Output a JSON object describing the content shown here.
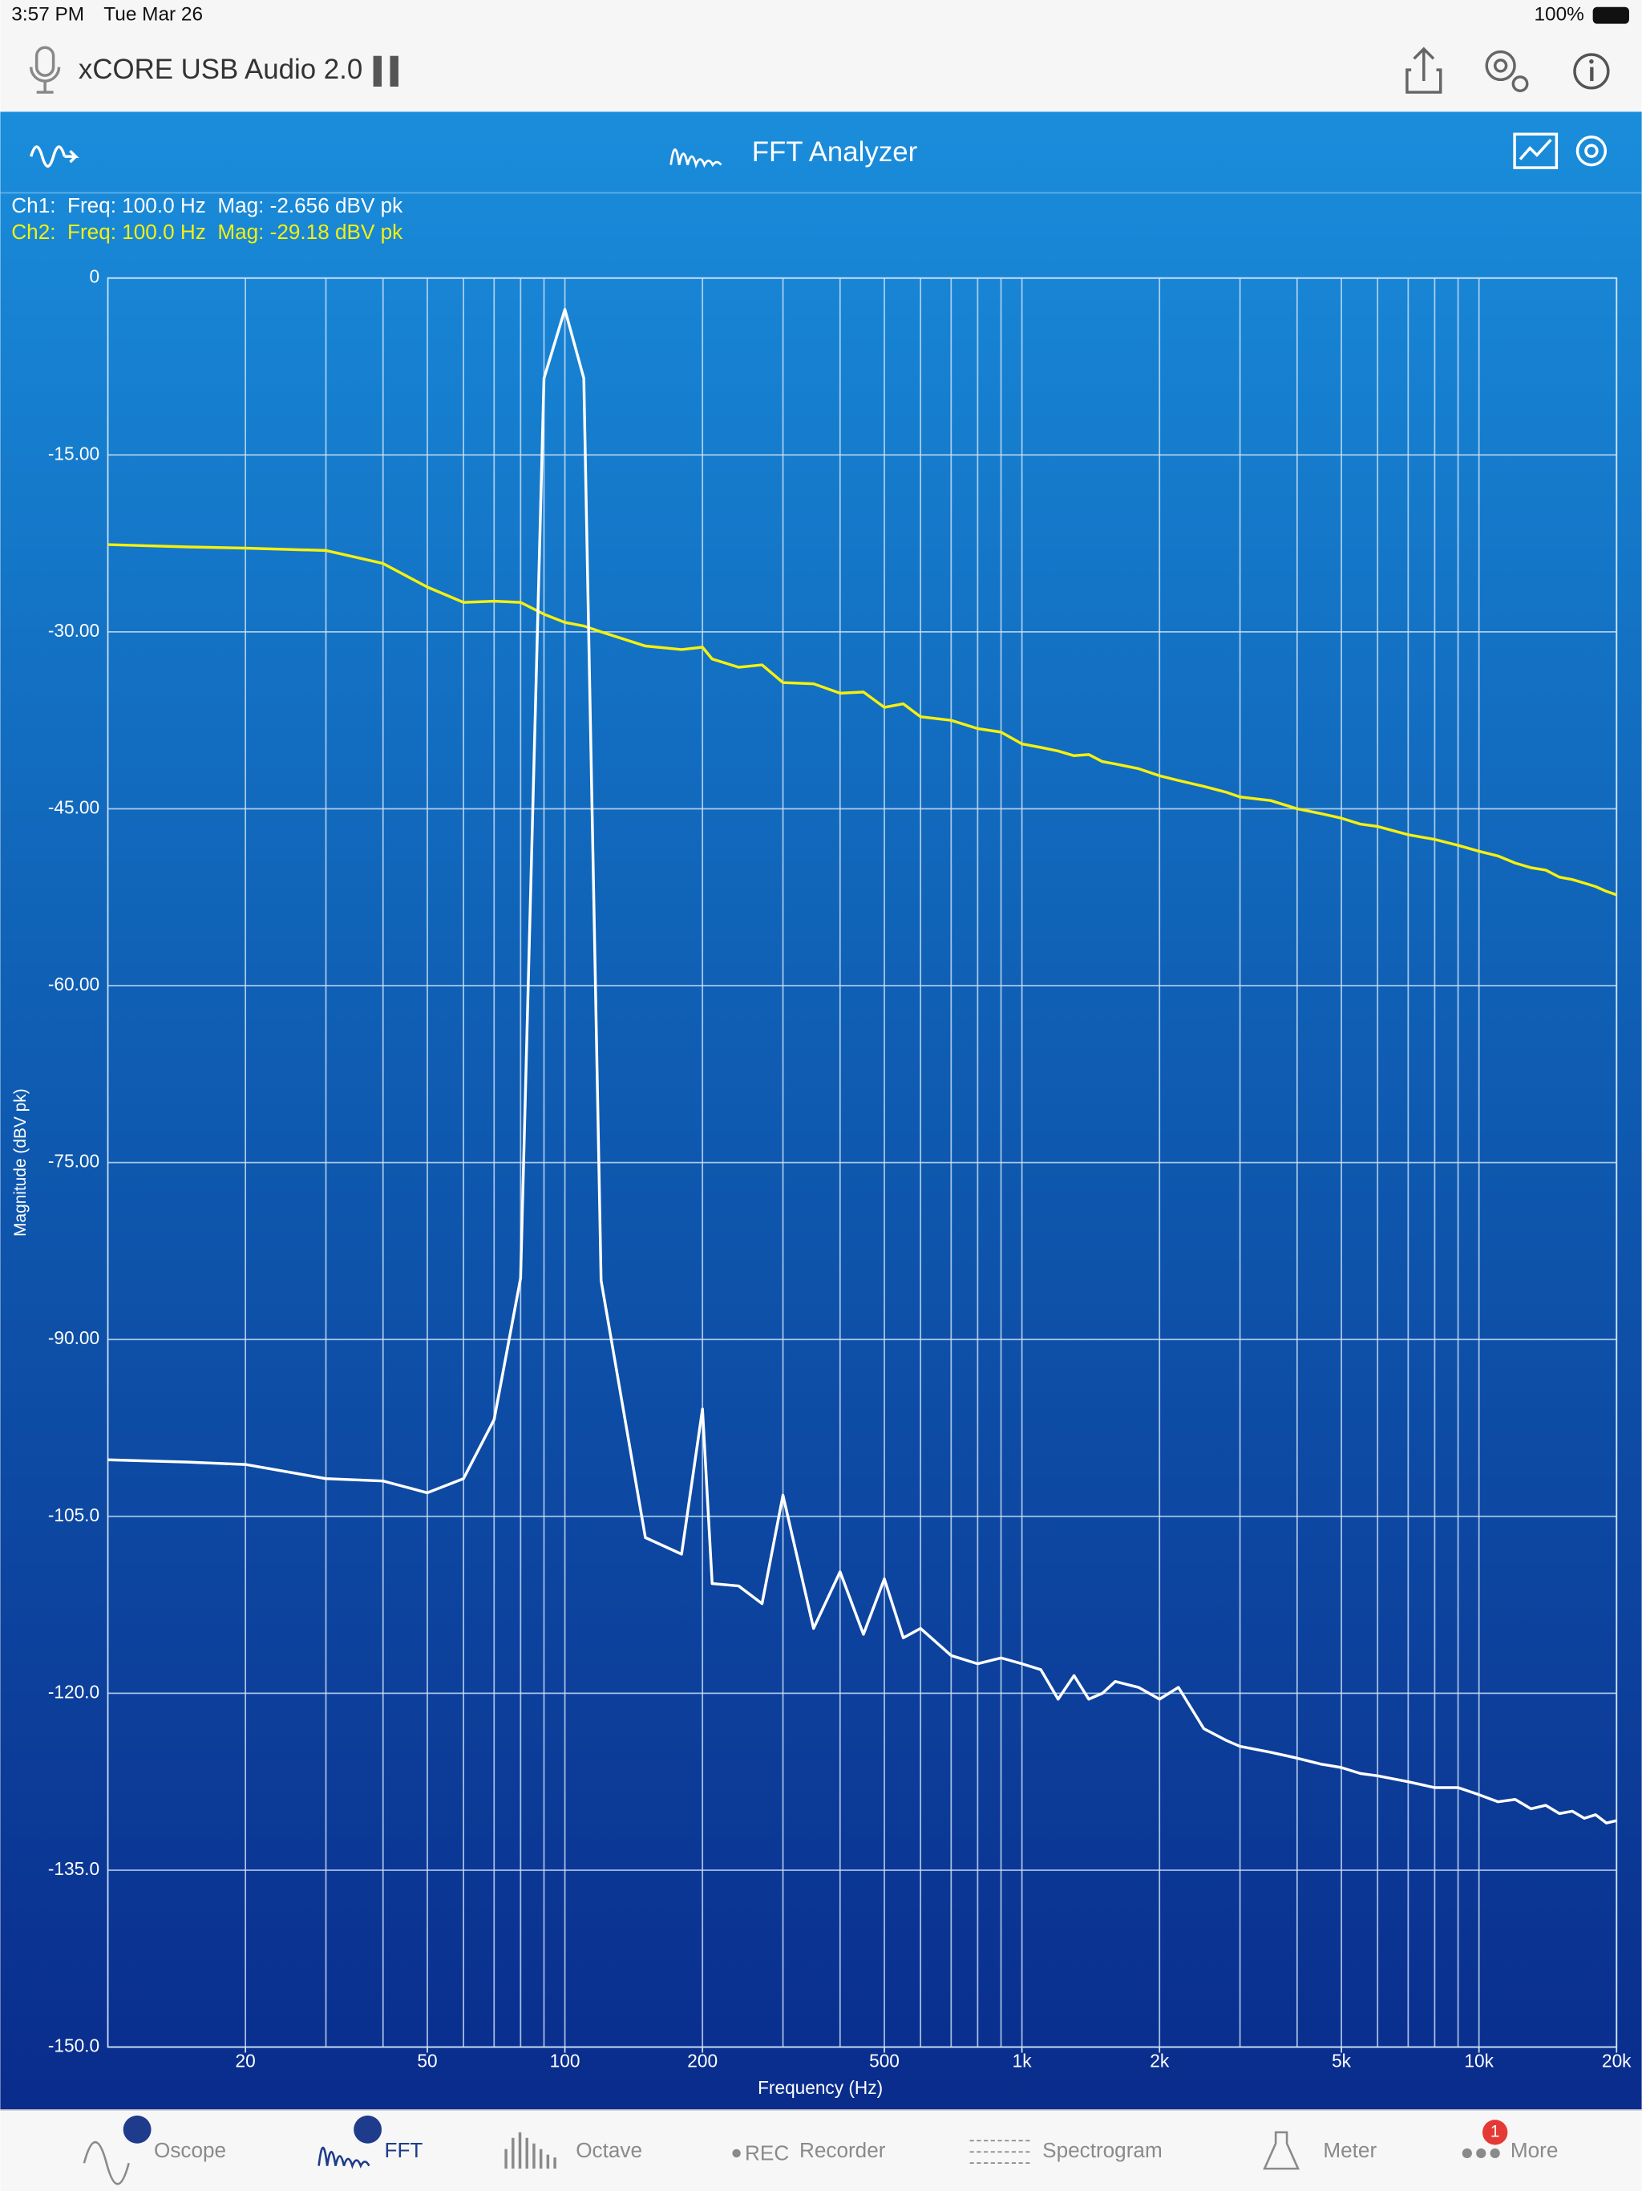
{
  "status_bar": {
    "time": "3:57 PM",
    "date": "Tue Mar 26",
    "battery": "100%"
  },
  "header": {
    "device": "xCORE USB Audio 2.0"
  },
  "toolbar": {
    "title": "FFT Analyzer"
  },
  "readout": {
    "ch1": "Ch1:  Freq: 100.0 Hz  Mag: -2.656 dBV pk",
    "ch2": "Ch2:  Freq: 100.0 Hz  Mag: -29.18 dBV pk"
  },
  "chart_data": {
    "type": "line",
    "x_label": "Frequency (Hz)",
    "y_label": "Magnitude (dBV pk)",
    "xscale": "log",
    "xlim": [
      10,
      20000
    ],
    "ylim": [
      -150,
      0
    ],
    "grid": true,
    "xticks": [
      20,
      50,
      100,
      200,
      500,
      {
        "value": 1000,
        "label": "1k"
      },
      {
        "value": 2000,
        "label": "2k"
      },
      {
        "value": 5000,
        "label": "5k"
      },
      {
        "value": 10000,
        "label": "10k"
      },
      {
        "value": 20000,
        "label": "20k"
      }
    ],
    "xgrid": [
      20,
      30,
      40,
      50,
      60,
      70,
      80,
      90,
      100,
      200,
      300,
      400,
      500,
      600,
      700,
      800,
      900,
      1000,
      2000,
      3000,
      4000,
      5000,
      6000,
      7000,
      8000,
      9000,
      10000,
      20000
    ],
    "yticks": [
      0,
      {
        "value": -15,
        "label": "-15.00"
      },
      {
        "value": -30,
        "label": "-30.00"
      },
      {
        "value": -45,
        "label": "-45.00"
      },
      {
        "value": -60,
        "label": "-60.00"
      },
      {
        "value": -75,
        "label": "-75.00"
      },
      {
        "value": -90,
        "label": "-90.00"
      },
      {
        "value": -105,
        "label": "-105.0"
      },
      {
        "value": -120,
        "label": "-120.0"
      },
      {
        "value": -135,
        "label": "-135.0"
      },
      {
        "value": -150,
        "label": "-150.0"
      }
    ],
    "x": [
      10,
      15,
      20,
      30,
      40,
      50,
      60,
      70,
      80,
      90,
      100,
      110,
      120,
      150,
      180,
      200,
      210,
      240,
      270,
      300,
      350,
      400,
      450,
      500,
      550,
      600,
      700,
      800,
      900,
      1000,
      1100,
      1200,
      1300,
      1400,
      1500,
      1600,
      1800,
      2000,
      2200,
      2500,
      2800,
      3000,
      3500,
      4000,
      4500,
      5000,
      5500,
      6000,
      7000,
      8000,
      9000,
      10000,
      11000,
      12000,
      13000,
      14000,
      15000,
      16000,
      17000,
      18000,
      19000,
      20000
    ],
    "series": [
      {
        "color": "#ffffff",
        "values": [
          -100.2,
          -100.4,
          -100.6,
          -101.8,
          -102,
          -103,
          -101.8,
          -96.8,
          -84.8,
          -8.5,
          -2.656,
          -8.5,
          -85,
          -106.8,
          -108.2,
          -95.9,
          -110.7,
          -110.9,
          -112.4,
          -103.2,
          -114.5,
          -109.7,
          -115,
          -110.3,
          -115.3,
          -114.5,
          -116.8,
          -117.5,
          -117,
          -117.5,
          -118,
          -120.5,
          -118.5,
          -120.5,
          -120,
          -119,
          -119.5,
          -120.5,
          -119.5,
          -123,
          -124,
          -124.5,
          -125,
          -125.5,
          -126,
          -126.3,
          -126.8,
          -127,
          -127.5,
          -128,
          -128,
          -128.6,
          -129.2,
          -129,
          -129.8,
          -129.5,
          -130.2,
          -130,
          -130.6,
          -130.3,
          -131,
          -130.8
        ]
      },
      {
        "color": "#f5f010",
        "values": [
          -22.6,
          -22.8,
          -22.9,
          -23.1,
          -24.2,
          -26.2,
          -27.5,
          -27.4,
          -27.5,
          -28.5,
          -29.2,
          -29.5,
          -30,
          -31.2,
          -31.5,
          -31.3,
          -32.3,
          -33,
          -32.8,
          -34.3,
          -34.4,
          -35.2,
          -35.1,
          -36.4,
          -36.1,
          -37.2,
          -37.5,
          -38.2,
          -38.5,
          -39.5,
          -39.8,
          -40.1,
          -40.5,
          -40.4,
          -41,
          -41.2,
          -41.6,
          -42.2,
          -42.6,
          -43.1,
          -43.6,
          -44,
          -44.3,
          -45,
          -45.4,
          -45.8,
          -46.3,
          -46.5,
          -47.2,
          -47.6,
          -48.1,
          -48.6,
          -49,
          -49.6,
          -50,
          -50.2,
          -50.8,
          -51,
          -51.3,
          -51.6,
          -52,
          -52.3
        ]
      }
    ]
  },
  "tabs": [
    "Oscope",
    "FFT",
    "Octave",
    "Recorder",
    "Spectrogram",
    "Meter",
    "More"
  ],
  "more_badge": 1
}
